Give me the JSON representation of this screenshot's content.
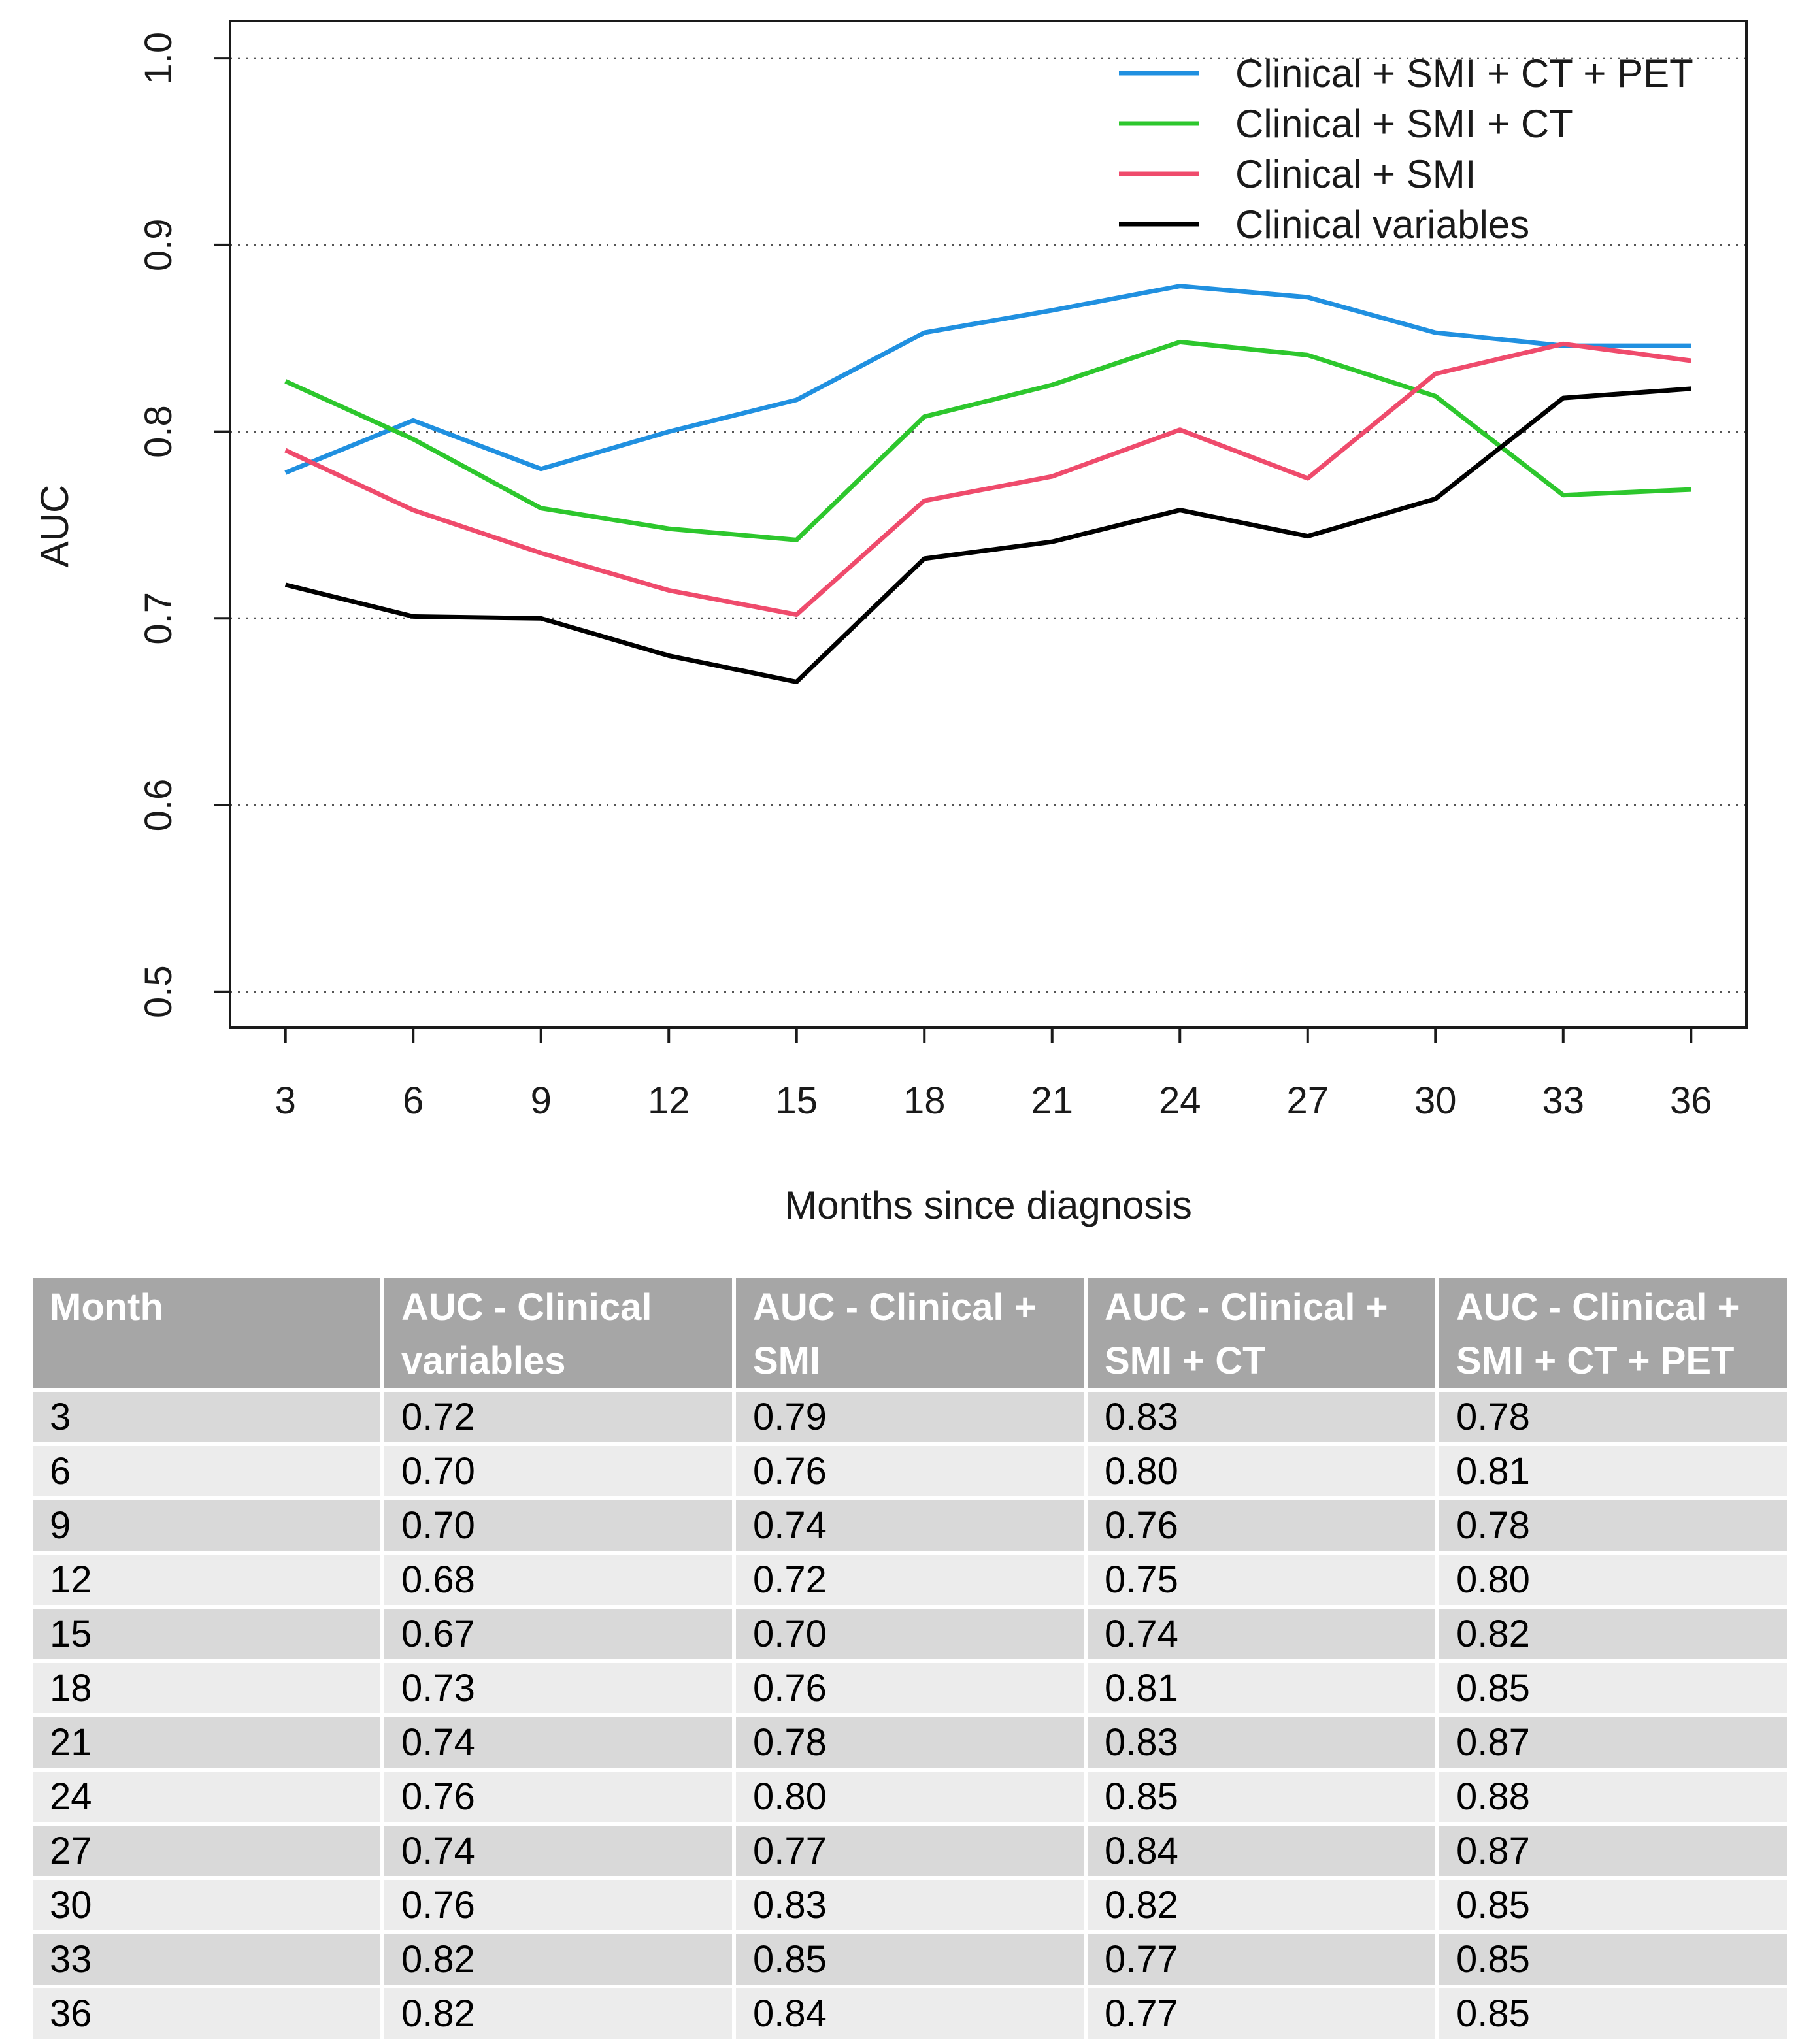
{
  "chart_data": {
    "type": "line",
    "title": "",
    "xlabel": "Months since diagnosis",
    "ylabel": "AUC",
    "x": [
      3,
      6,
      9,
      12,
      15,
      18,
      21,
      24,
      27,
      30,
      33,
      36
    ],
    "x_tick_labels": [
      "3",
      "6",
      "9",
      "12",
      "15",
      "18",
      "21",
      "24",
      "27",
      "30",
      "33",
      "36"
    ],
    "y_ticks": [
      0.5,
      0.6,
      0.7,
      0.8,
      0.9,
      1.0
    ],
    "y_tick_labels": [
      "0.5",
      "0.6",
      "0.7",
      "0.8",
      "0.9",
      "1.0"
    ],
    "xlim": [
      1.7,
      37.3
    ],
    "ylim": [
      0.481,
      1.02
    ],
    "grid": "horizontal dotted",
    "legend_position": "top-right",
    "series": [
      {
        "name": "Clinical + SMI + CT + PET",
        "color": "#2090e0",
        "values": [
          0.778,
          0.806,
          0.78,
          0.8,
          0.817,
          0.853,
          0.865,
          0.878,
          0.872,
          0.853,
          0.846,
          0.846
        ]
      },
      {
        "name": "Clinical + SMI + CT",
        "color": "#2dc72d",
        "values": [
          0.827,
          0.796,
          0.759,
          0.748,
          0.742,
          0.808,
          0.825,
          0.848,
          0.841,
          0.819,
          0.766,
          0.769
        ]
      },
      {
        "name": "Clinical + SMI",
        "color": "#ef4b6c",
        "values": [
          0.79,
          0.758,
          0.735,
          0.715,
          0.702,
          0.763,
          0.776,
          0.801,
          0.775,
          0.831,
          0.847,
          0.838
        ]
      },
      {
        "name": "Clinical variables",
        "color": "#000000",
        "values": [
          0.718,
          0.701,
          0.7,
          0.68,
          0.666,
          0.732,
          0.741,
          0.758,
          0.744,
          0.764,
          0.818,
          0.823
        ]
      }
    ]
  },
  "table": {
    "headers": [
      [
        "Month"
      ],
      [
        "AUC - Clinical",
        "variables"
      ],
      [
        "AUC - Clinical +",
        "SMI"
      ],
      [
        "AUC - Clinical +",
        "SMI + CT"
      ],
      [
        "AUC - Clinical +",
        "SMI + CT + PET"
      ]
    ],
    "rows": [
      [
        "3",
        "0.72",
        "0.79",
        "0.83",
        "0.78"
      ],
      [
        "6",
        "0.70",
        "0.76",
        "0.80",
        "0.81"
      ],
      [
        "9",
        "0.70",
        "0.74",
        "0.76",
        "0.78"
      ],
      [
        "12",
        "0.68",
        "0.72",
        "0.75",
        "0.80"
      ],
      [
        "15",
        "0.67",
        "0.70",
        "0.74",
        "0.82"
      ],
      [
        "18",
        "0.73",
        "0.76",
        "0.81",
        "0.85"
      ],
      [
        "21",
        "0.74",
        "0.78",
        "0.83",
        "0.87"
      ],
      [
        "24",
        "0.76",
        "0.80",
        "0.85",
        "0.88"
      ],
      [
        "27",
        "0.74",
        "0.77",
        "0.84",
        "0.87"
      ],
      [
        "30",
        "0.76",
        "0.83",
        "0.82",
        "0.85"
      ],
      [
        "33",
        "0.82",
        "0.85",
        "0.77",
        "0.85"
      ],
      [
        "36",
        "0.82",
        "0.84",
        "0.77",
        "0.85"
      ]
    ]
  }
}
